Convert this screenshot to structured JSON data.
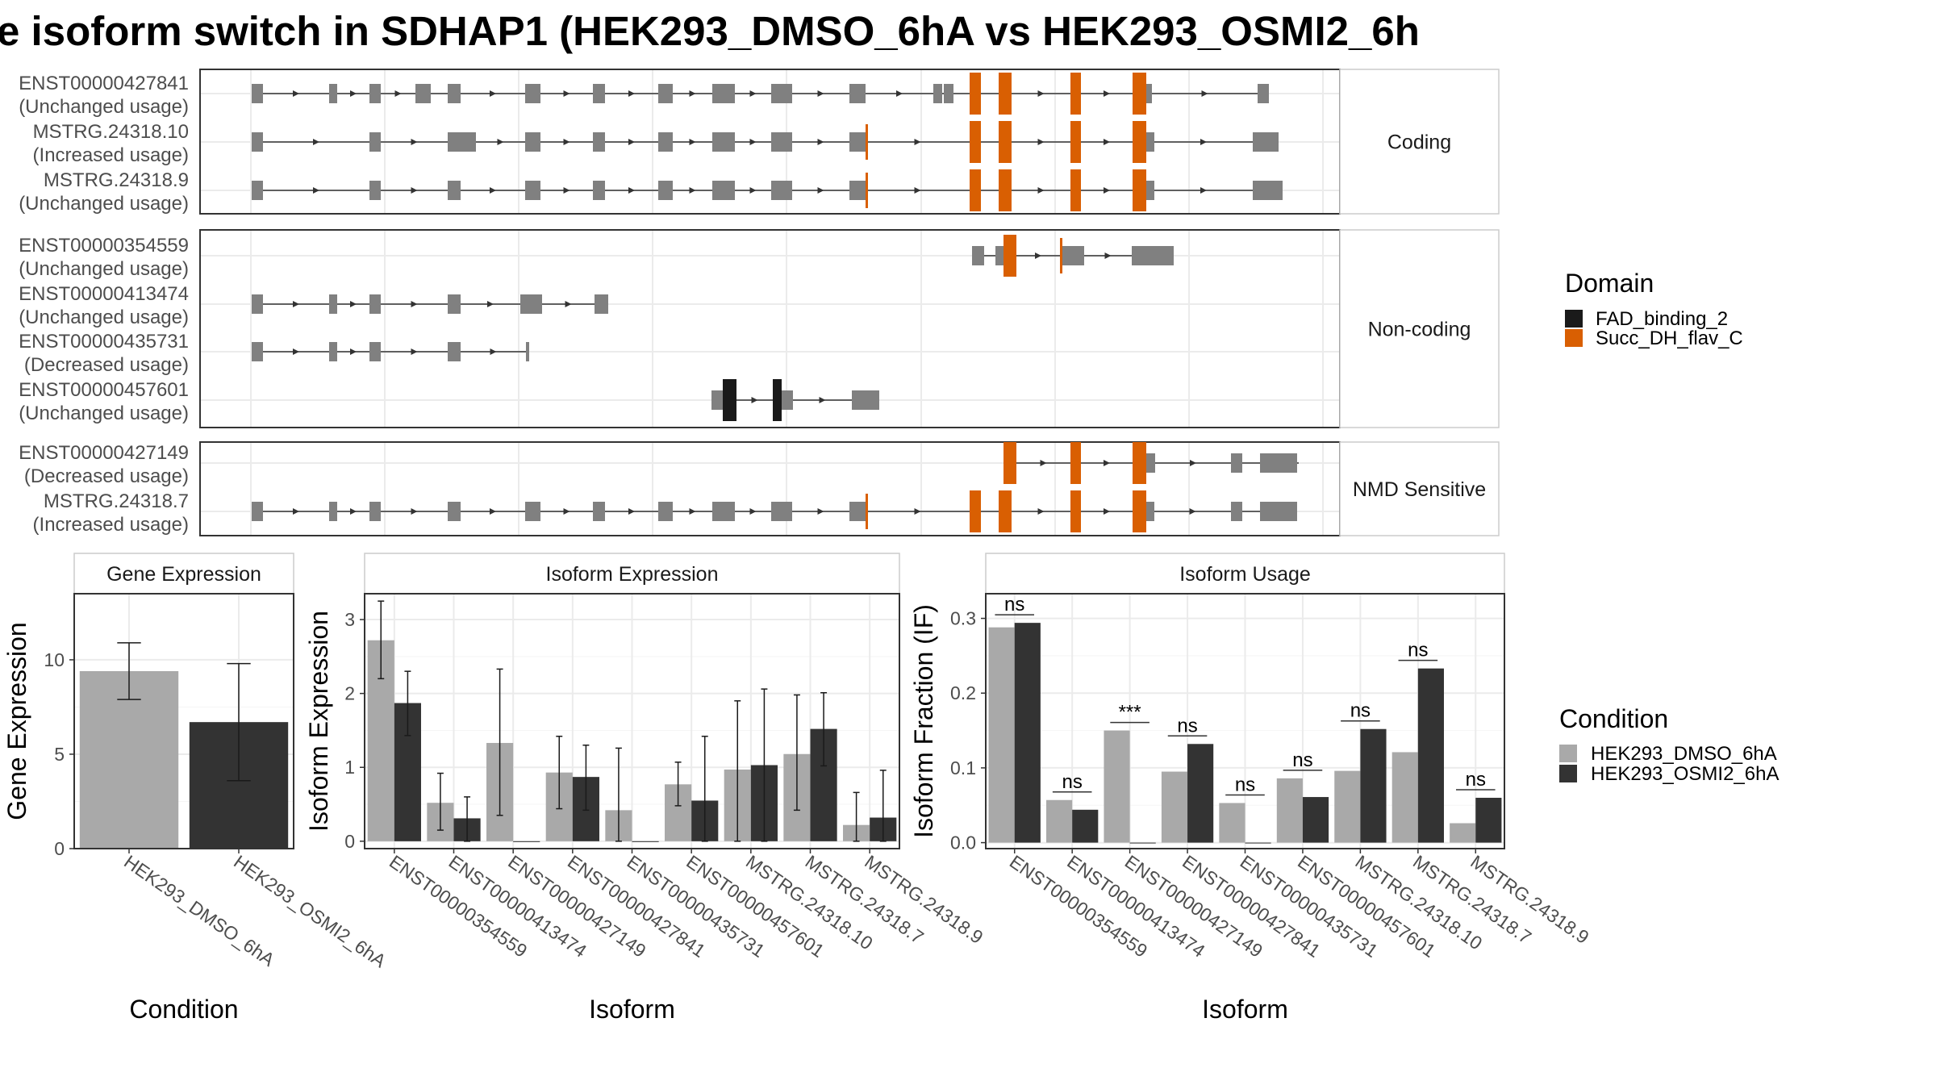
{
  "title": "e isoform switch in SDHAP1 (HEK293_DMSO_6hA vs HEK293_OSMI2_6h",
  "colors": {
    "exon": "#808080",
    "FAD_binding_2": "#1a1a1a",
    "Succ_DH_flav_C": "#d95f02",
    "dmso": "#a9a9a9",
    "osmi": "#333333"
  },
  "structure": {
    "panels": [
      {
        "label": "Coding",
        "rows": [
          "ENST00000427841",
          "MSTRG.24318.10",
          "MSTRG.24318.9"
        ]
      },
      {
        "label": "Non-coding",
        "rows": [
          "ENST00000354559",
          "ENST00000413474",
          "ENST00000435731",
          "ENST00000457601"
        ]
      },
      {
        "label": "NMD Sensitive",
        "rows": [
          "ENST00000427149",
          "MSTRG.24318.7"
        ]
      }
    ],
    "transcripts": [
      {
        "id": "ENST00000427841",
        "usage": "(Unchanged usage)"
      },
      {
        "id": "MSTRG.24318.10",
        "usage": "(Increased usage)"
      },
      {
        "id": "MSTRG.24318.9",
        "usage": "(Unchanged usage)"
      },
      {
        "id": "ENST00000354559",
        "usage": "(Unchanged usage)"
      },
      {
        "id": "ENST00000413474",
        "usage": "(Unchanged usage)"
      },
      {
        "id": "ENST00000435731",
        "usage": "(Decreased usage)"
      },
      {
        "id": "ENST00000457601",
        "usage": "(Unchanged usage)"
      },
      {
        "id": "ENST00000427149",
        "usage": "(Decreased usage)"
      },
      {
        "id": "MSTRG.24318.7",
        "usage": "(Increased usage)"
      }
    ]
  },
  "legend_domain": {
    "title": "Domain",
    "items": [
      {
        "label": "FAD_binding_2",
        "color": "#1a1a1a"
      },
      {
        "label": "Succ_DH_flav_C",
        "color": "#d95f02"
      }
    ]
  },
  "legend_condition": {
    "title": "Condition",
    "items": [
      {
        "label": "HEK293_DMSO_6hA",
        "color": "#a9a9a9"
      },
      {
        "label": "HEK293_OSMI2_6hA",
        "color": "#333333"
      }
    ]
  },
  "chart_data": [
    {
      "type": "bar",
      "title": "Gene Expression",
      "xlabel": "Condition",
      "ylabel": "Gene Expression",
      "ylim": [
        0,
        13.5
      ],
      "yticks": [
        0,
        5,
        10
      ],
      "categories": [
        "HEK293_DMSO_6hA",
        "HEK293_OSMI2_6hA"
      ],
      "values": [
        9.4,
        6.7
      ],
      "error_low": [
        7.9,
        3.6
      ],
      "error_high": [
        10.9,
        9.8
      ]
    },
    {
      "type": "bar",
      "title": "Isoform Expression",
      "xlabel": "Isoform",
      "ylabel": "Isoform Expression",
      "ylim": [
        -0.1,
        3.35
      ],
      "yticks": [
        0,
        1,
        2,
        3
      ],
      "categories": [
        "ENST00000354559",
        "ENST00000413474",
        "ENST00000427149",
        "ENST00000427841",
        "ENST00000435731",
        "ENST00000457601",
        "MSTRG.24318.10",
        "MSTRG.24318.7",
        "MSTRG.24318.9"
      ],
      "series": [
        {
          "name": "HEK293_DMSO_6hA",
          "values": [
            2.72,
            0.52,
            1.33,
            0.93,
            0.42,
            0.77,
            0.97,
            1.18,
            0.22
          ],
          "error_low": [
            2.2,
            0.15,
            0.35,
            0.44,
            0.0,
            0.48,
            0.0,
            0.42,
            0.0
          ],
          "error_high": [
            3.25,
            0.92,
            2.33,
            1.42,
            1.26,
            1.07,
            1.9,
            1.98,
            0.66
          ]
        },
        {
          "name": "HEK293_OSMI2_6hA",
          "values": [
            1.87,
            0.31,
            0.0,
            0.87,
            0.0,
            0.55,
            1.03,
            1.52,
            0.32
          ],
          "error_low": [
            1.43,
            0.0,
            0.0,
            0.42,
            0.0,
            0.0,
            0.0,
            1.02,
            0.0
          ],
          "error_high": [
            2.3,
            0.6,
            0.0,
            1.3,
            0.0,
            1.42,
            2.06,
            2.01,
            0.96
          ]
        }
      ]
    },
    {
      "type": "bar",
      "title": "Isoform Usage",
      "xlabel": "Isoform",
      "ylabel": "Isoform Fraction (IF)",
      "ylim": [
        -0.008,
        0.333
      ],
      "yticks": [
        "0.0",
        "0.1",
        "0.2",
        "0.3"
      ],
      "categories": [
        "ENST00000354559",
        "ENST00000413474",
        "ENST00000427149",
        "ENST00000427841",
        "ENST00000435731",
        "ENST00000457601",
        "MSTRG.24318.10",
        "MSTRG.24318.7",
        "MSTRG.24318.9"
      ],
      "series": [
        {
          "name": "HEK293_DMSO_6hA",
          "values": [
            0.288,
            0.057,
            0.15,
            0.095,
            0.053,
            0.086,
            0.096,
            0.121,
            0.026
          ]
        },
        {
          "name": "HEK293_OSMI2_6hA",
          "values": [
            0.294,
            0.044,
            0.0,
            0.132,
            0.0,
            0.061,
            0.152,
            0.233,
            0.06
          ]
        }
      ],
      "significance": [
        "ns",
        "ns",
        "***",
        "ns",
        "ns",
        "ns",
        "ns",
        "ns",
        "ns"
      ]
    }
  ]
}
